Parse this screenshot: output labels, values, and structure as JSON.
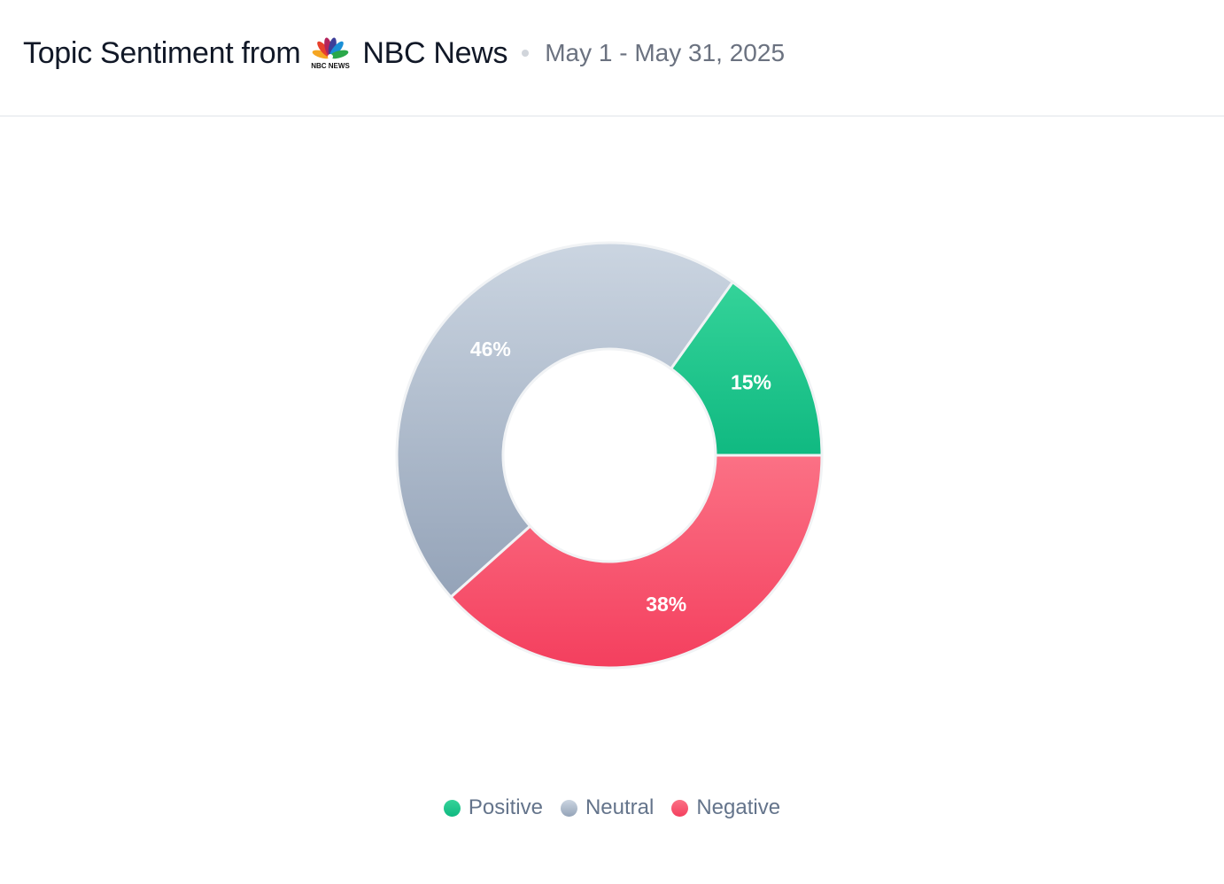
{
  "header": {
    "title_prefix": "Topic Sentiment from",
    "source_logo": "NBC NEWS",
    "source_name": "NBC News",
    "date_range": "May 1 - May 31, 2025"
  },
  "chart_data": {
    "type": "pie",
    "variant": "donut",
    "title": "Topic Sentiment from NBC News",
    "start_angle": "3 o'clock, counterclockwise",
    "legend_position": "bottom",
    "slices": [
      {
        "name": "Positive",
        "value": 15,
        "label": "15%",
        "color": "#10b981",
        "color_light": "#34d399"
      },
      {
        "name": "Neutral",
        "value": 46,
        "label": "46%",
        "color": "#94a3b8",
        "color_light": "#cbd5e1"
      },
      {
        "name": "Negative",
        "value": 38,
        "label": "38%",
        "color": "#f43f5e",
        "color_light": "#fb7185"
      }
    ]
  }
}
